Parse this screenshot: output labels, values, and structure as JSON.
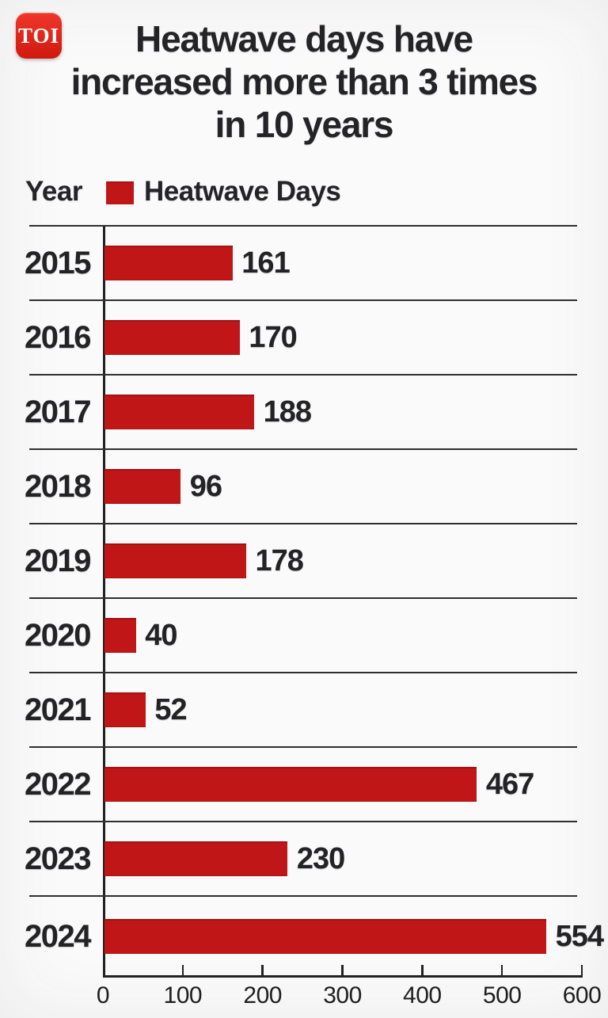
{
  "logo": {
    "text": "TOI"
  },
  "header": {
    "line1": "Heatwave days have",
    "line2": "increased more than 3 times",
    "line3": "in 10 years"
  },
  "legend": {
    "year_label": "Year",
    "series_label": "Heatwave Days"
  },
  "colors": {
    "bar_red": "#c01618",
    "logo_red": "#e0281c",
    "ink": "#242428",
    "grid_line": "#2e2e2e",
    "background": "#fbfafa"
  },
  "chart_data": {
    "type": "bar",
    "orientation": "horizontal",
    "title": "Heatwave days have increased more than 3 times in 10 years",
    "series_name": "Heatwave Days",
    "categories": [
      "2015",
      "2016",
      "2017",
      "2018",
      "2019",
      "2020",
      "2021",
      "2022",
      "2023",
      "2024"
    ],
    "values": [
      161,
      170,
      188,
      96,
      178,
      40,
      52,
      467,
      230,
      554
    ],
    "xlim": [
      0,
      600
    ],
    "x_ticks": [
      0,
      100,
      200,
      300,
      400,
      500,
      600
    ],
    "xlabel": "",
    "ylabel": "Year",
    "grid": "horizontal row separator lines",
    "legend_position": "top-left",
    "value_labels": "right of bar"
  }
}
